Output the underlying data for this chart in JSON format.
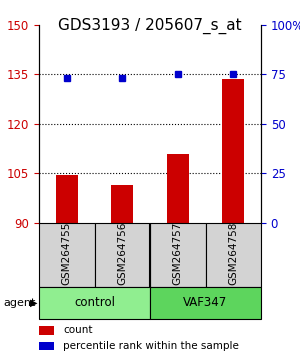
{
  "title": "GDS3193 / 205607_s_at",
  "samples": [
    "GSM264755",
    "GSM264756",
    "GSM264757",
    "GSM264758"
  ],
  "groups": [
    "control",
    "control",
    "VAF347",
    "VAF347"
  ],
  "group_labels": [
    "control",
    "VAF347"
  ],
  "group_colors": [
    "#90EE90",
    "#4CBB47"
  ],
  "count_values": [
    104.5,
    101.5,
    111.0,
    133.5
  ],
  "percentile_values": [
    73,
    73,
    75,
    75
  ],
  "ylim_left": [
    90,
    150
  ],
  "ylim_right": [
    0,
    100
  ],
  "yticks_left": [
    90,
    105,
    120,
    135,
    150
  ],
  "yticks_right": [
    0,
    25,
    50,
    75,
    100
  ],
  "ytick_labels_right": [
    "0",
    "25",
    "50",
    "75",
    "100%"
  ],
  "bar_color": "#CC0000",
  "dot_color": "#0000CC",
  "bar_width": 0.35,
  "agent_label": "agent",
  "legend_count": "count",
  "legend_pct": "percentile rank within the sample",
  "hline_values": [
    105,
    120,
    135
  ],
  "bg_color": "#FFFFFF",
  "plot_bg": "#FFFFFF",
  "label_fontsize": 9,
  "tick_fontsize": 8.5,
  "title_fontsize": 11,
  "left_tick_color": "#CC0000",
  "right_tick_color": "#0000CC"
}
